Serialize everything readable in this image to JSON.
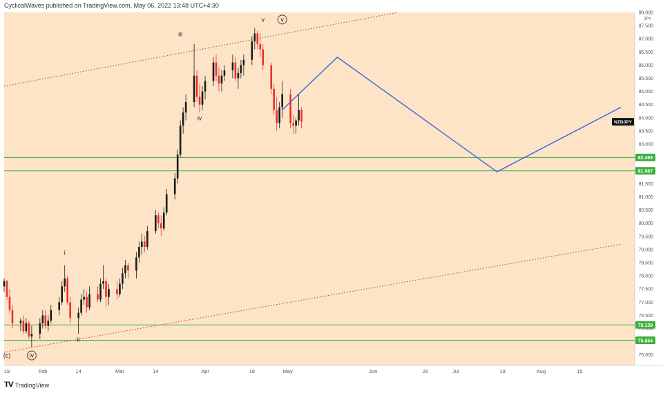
{
  "header": {
    "publisher_line": "CyclicalWaves published on TradingView.com, May 06, 2022 13:48 UTC+4:30"
  },
  "footer": {
    "brand_icon": "tv-logo-icon",
    "brand_label": "TradingView"
  },
  "colors": {
    "background": "#fde4c6",
    "up_candle": "#1a1a1a",
    "down_candle": "#e8302c",
    "horizontal_levels": "#3fae3f",
    "projection": "#3f63e0",
    "channel": "#b23a3a"
  },
  "chart_data": {
    "type": "candlestick",
    "symbol": "NZDJPY",
    "y_unit": "JPY",
    "last_price": 83.85,
    "ylim": [
      74.6,
      88.0
    ],
    "y_ticks": [
      "75.000",
      "75.500",
      "76.000",
      "76.500",
      "77.000",
      "77.500",
      "78.000",
      "78.500",
      "79.000",
      "79.500",
      "80.000",
      "80.500",
      "81.000",
      "81.500",
      "82.000",
      "82.500",
      "83.000",
      "83.500",
      "84.000",
      "84.500",
      "85.000",
      "85.500",
      "86.000",
      "86.500",
      "87.000",
      "87.500",
      "88.000"
    ],
    "x_ticks": [
      "19",
      "Feb",
      "14",
      "Mar",
      "14",
      "Apr",
      "18",
      "May",
      "Jun",
      "20",
      "Jul",
      "18",
      "Aug",
      "15"
    ],
    "horizontal_levels": [
      {
        "value": 82.493,
        "label": "82.493"
      },
      {
        "value": 81.987,
        "label": "81.987"
      },
      {
        "value": 76.139,
        "label": "76.139"
      },
      {
        "value": 75.554,
        "label": "75.554"
      }
    ],
    "wave_labels": [
      {
        "text": "(c)",
        "circled": false,
        "x": "2022-01-19",
        "y": 74.9
      },
      {
        "text": "iv",
        "circled": true,
        "x": "2022-01-28",
        "y": 74.9
      },
      {
        "text": "i",
        "circled": false,
        "x": "2022-02-09",
        "y": 78.8
      },
      {
        "text": "ii",
        "circled": false,
        "x": "2022-02-14",
        "y": 75.5
      },
      {
        "text": "iii",
        "circled": false,
        "x": "2022-03-23",
        "y": 87.1
      },
      {
        "text": "iv",
        "circled": false,
        "x": "2022-03-30",
        "y": 83.9
      },
      {
        "text": "v",
        "circled": false,
        "x": "2022-04-22",
        "y": 87.65
      },
      {
        "text": "v",
        "circled": true,
        "x": "2022-04-29",
        "y": 87.65
      }
    ],
    "projection_path": [
      {
        "x": "2022-04-29",
        "y": 84.3
      },
      {
        "x": "2022-05-19",
        "y": 86.3
      },
      {
        "x": "2022-07-16",
        "y": 81.95
      },
      {
        "x": "2022-08-30",
        "y": 84.4
      }
    ],
    "channel_lines": [
      {
        "from": {
          "x": "2022-01-18",
          "y": 85.2
        },
        "to": {
          "x": "2022-06-10",
          "y": 88.0
        }
      },
      {
        "from": {
          "x": "2022-01-18",
          "y": 75.1
        },
        "to": {
          "x": "2022-08-30",
          "y": 79.2
        }
      }
    ],
    "candles": [
      [
        "2022-01-18",
        77.6,
        77.9,
        77.4,
        77.8
      ],
      [
        "2022-01-19",
        77.8,
        77.85,
        77.1,
        77.2
      ],
      [
        "2022-01-20",
        77.2,
        77.5,
        76.6,
        76.7
      ],
      [
        "2022-01-21",
        76.7,
        76.9,
        76.0,
        76.2
      ],
      [
        "2022-01-24",
        76.2,
        76.4,
        75.9,
        76.3
      ],
      [
        "2022-01-25",
        76.3,
        76.5,
        75.8,
        75.9
      ],
      [
        "2022-01-26",
        75.9,
        76.4,
        75.8,
        76.2
      ],
      [
        "2022-01-27",
        76.2,
        76.3,
        75.6,
        75.7
      ],
      [
        "2022-01-28",
        75.7,
        76.1,
        75.3,
        75.8
      ],
      [
        "2022-01-31",
        75.8,
        76.4,
        75.6,
        76.2
      ],
      [
        "2022-02-01",
        76.2,
        76.7,
        76.0,
        76.5
      ],
      [
        "2022-02-02",
        76.5,
        76.7,
        76.0,
        76.1
      ],
      [
        "2022-02-03",
        76.1,
        76.5,
        75.9,
        76.3
      ],
      [
        "2022-02-04",
        76.3,
        76.9,
        76.2,
        76.7
      ],
      [
        "2022-02-07",
        76.7,
        77.2,
        76.5,
        77.0
      ],
      [
        "2022-02-08",
        77.0,
        77.8,
        76.9,
        77.6
      ],
      [
        "2022-02-09",
        77.6,
        78.4,
        77.4,
        77.9
      ],
      [
        "2022-02-10",
        77.9,
        78.0,
        76.9,
        77.0
      ],
      [
        "2022-02-11",
        77.0,
        77.2,
        76.2,
        76.4
      ],
      [
        "2022-02-14",
        76.4,
        76.8,
        75.8,
        76.6
      ],
      [
        "2022-02-15",
        76.6,
        77.3,
        76.5,
        77.1
      ],
      [
        "2022-02-16",
        77.1,
        77.5,
        76.9,
        77.2
      ],
      [
        "2022-02-17",
        77.2,
        77.4,
        76.6,
        76.8
      ],
      [
        "2022-02-18",
        76.8,
        77.6,
        76.7,
        77.3
      ],
      [
        "2022-02-21",
        77.3,
        77.6,
        77.0,
        77.1
      ],
      [
        "2022-02-22",
        77.1,
        77.9,
        77.0,
        77.7
      ],
      [
        "2022-02-23",
        77.7,
        78.4,
        77.5,
        77.8
      ],
      [
        "2022-02-24",
        77.8,
        77.9,
        76.8,
        77.2
      ],
      [
        "2022-02-25",
        77.2,
        77.7,
        76.9,
        77.5
      ],
      [
        "2022-02-28",
        77.5,
        77.8,
        77.1,
        77.3
      ],
      [
        "2022-03-01",
        77.3,
        77.9,
        77.2,
        77.7
      ],
      [
        "2022-03-02",
        77.7,
        78.3,
        77.5,
        78.1
      ],
      [
        "2022-03-03",
        78.1,
        78.6,
        77.9,
        78.4
      ],
      [
        "2022-03-04",
        78.4,
        78.5,
        77.9,
        78.2
      ],
      [
        "2022-03-07",
        78.2,
        78.9,
        77.9,
        78.7
      ],
      [
        "2022-03-08",
        78.7,
        79.3,
        78.5,
        79.1
      ],
      [
        "2022-03-09",
        79.1,
        79.6,
        78.8,
        79.3
      ],
      [
        "2022-03-10",
        79.3,
        79.5,
        78.9,
        79.1
      ],
      [
        "2022-03-11",
        79.1,
        79.9,
        79.0,
        79.7
      ],
      [
        "2022-03-14",
        79.7,
        80.5,
        79.6,
        80.3
      ],
      [
        "2022-03-15",
        80.3,
        80.4,
        79.8,
        80.0
      ],
      [
        "2022-03-16",
        80.0,
        80.3,
        79.5,
        79.8
      ],
      [
        "2022-03-17",
        79.8,
        80.6,
        79.7,
        80.4
      ],
      [
        "2022-03-18",
        80.4,
        81.3,
        80.3,
        81.1
      ],
      [
        "2022-03-21",
        81.1,
        81.9,
        80.9,
        81.7
      ],
      [
        "2022-03-22",
        81.7,
        82.8,
        81.5,
        82.6
      ],
      [
        "2022-03-23",
        82.6,
        83.9,
        82.5,
        83.7
      ],
      [
        "2022-03-24",
        83.7,
        84.4,
        83.4,
        84.2
      ],
      [
        "2022-03-25",
        84.2,
        84.9,
        83.9,
        84.6
      ],
      [
        "2022-03-28",
        84.6,
        86.8,
        84.4,
        85.6
      ],
      [
        "2022-03-29",
        85.6,
        85.8,
        84.6,
        84.8
      ],
      [
        "2022-03-30",
        84.8,
        85.3,
        84.2,
        84.5
      ],
      [
        "2022-03-31",
        84.5,
        85.2,
        84.3,
        85.0
      ],
      [
        "2022-04-01",
        85.0,
        85.6,
        84.7,
        85.4
      ],
      [
        "2022-04-04",
        85.4,
        86.3,
        85.2,
        86.1
      ],
      [
        "2022-04-05",
        86.1,
        86.4,
        85.4,
        85.6
      ],
      [
        "2022-04-06",
        85.6,
        85.9,
        85.0,
        85.3
      ],
      [
        "2022-04-07",
        85.3,
        85.8,
        85.0,
        85.6
      ],
      [
        "2022-04-08",
        85.6,
        86.0,
        85.4,
        85.8
      ],
      [
        "2022-04-11",
        85.8,
        86.4,
        85.5,
        86.1
      ],
      [
        "2022-04-12",
        86.1,
        86.3,
        85.4,
        85.5
      ],
      [
        "2022-04-13",
        85.5,
        85.9,
        85.1,
        85.7
      ],
      [
        "2022-04-14",
        85.7,
        86.2,
        85.5,
        86.0
      ],
      [
        "2022-04-15",
        86.0,
        86.4,
        85.6,
        86.2
      ],
      [
        "2022-04-18",
        86.2,
        87.1,
        86.0,
        86.9
      ],
      [
        "2022-04-19",
        86.9,
        87.4,
        86.6,
        87.2
      ],
      [
        "2022-04-20",
        87.2,
        87.3,
        86.6,
        86.8
      ],
      [
        "2022-04-21",
        86.8,
        87.2,
        86.3,
        86.6
      ],
      [
        "2022-04-22",
        86.6,
        86.8,
        85.8,
        86.0
      ],
      [
        "2022-04-25",
        86.0,
        86.1,
        84.9,
        85.1
      ],
      [
        "2022-04-26",
        85.1,
        85.3,
        84.1,
        84.3
      ],
      [
        "2022-04-27",
        84.3,
        84.8,
        83.5,
        83.8
      ],
      [
        "2022-04-28",
        83.8,
        84.6,
        83.6,
        84.4
      ],
      [
        "2022-04-29",
        84.4,
        85.4,
        84.0,
        84.9
      ],
      [
        "2022-05-02",
        84.9,
        85.1,
        83.6,
        83.8
      ],
      [
        "2022-05-03",
        83.8,
        84.1,
        83.4,
        83.7
      ],
      [
        "2022-05-04",
        83.7,
        84.0,
        83.4,
        83.9
      ],
      [
        "2022-05-05",
        83.9,
        84.9,
        83.7,
        84.3
      ],
      [
        "2022-05-06",
        84.3,
        84.4,
        83.6,
        83.85
      ]
    ]
  }
}
